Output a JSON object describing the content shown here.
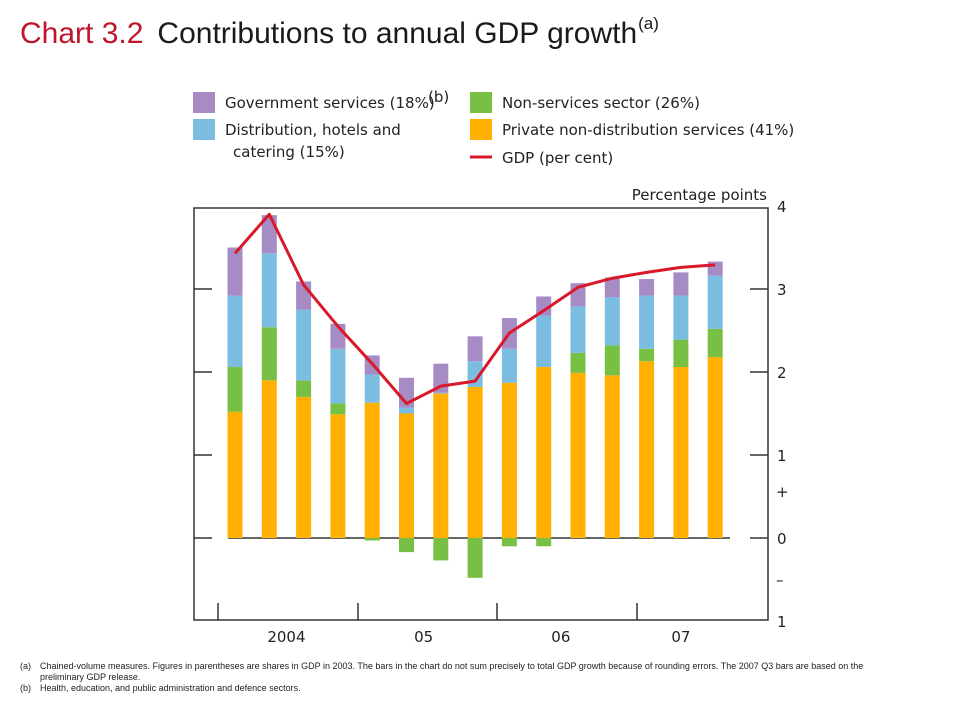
{
  "title": {
    "number": "Chart 3.2",
    "text": "Contributions to annual GDP growth",
    "note_marker": "(a)"
  },
  "footnotes": [
    {
      "marker": "(a)",
      "text": "Chained-volume measures.  Figures in parentheses are shares in GDP in 2003.  The bars in the chart do not sum precisely to total GDP growth because of rounding errors.  The 2007 Q3 bars are based on the preliminary GDP release."
    },
    {
      "marker": "(b)",
      "text": "Health, education, and public administration and defence sectors."
    }
  ],
  "chart_data": {
    "type": "bar",
    "stacked": true,
    "ylabel": "Percentage points",
    "ylim": [
      -1,
      4
    ],
    "yticks": [
      {
        "value": 4,
        "label": "4"
      },
      {
        "value": 3,
        "label": "3"
      },
      {
        "value": 2,
        "label": "2"
      },
      {
        "value": 1,
        "label": "1"
      },
      {
        "value": 0,
        "label": "0"
      },
      {
        "value": -1,
        "label": "1"
      }
    ],
    "sign_marks": {
      "plus": "+",
      "minus": "–"
    },
    "grid": false,
    "legend_position": "top",
    "legend": [
      {
        "label": "Government services (18%)",
        "note": "(b)",
        "kind": "bar",
        "color": "#a78bc5"
      },
      {
        "label": "Distribution, hotels and",
        "label2": "catering (15%)",
        "kind": "bar",
        "color": "#7bbde0"
      },
      {
        "label": "Non-services sector (26%)",
        "kind": "bar",
        "color": "#78c043"
      },
      {
        "label": "Private non-distribution services (41%)",
        "kind": "bar",
        "color": "#ffb000"
      },
      {
        "label": "GDP (per cent)",
        "kind": "line",
        "color": "#d9192a"
      }
    ],
    "categories": [
      "2004 Q1",
      "2004 Q2",
      "2004 Q3",
      "2004 Q4",
      "2005 Q1",
      "2005 Q2",
      "2005 Q3",
      "2005 Q4",
      "2006 Q1",
      "2006 Q2",
      "2006 Q3",
      "2006 Q4",
      "2007 Q1",
      "2007 Q2",
      "2007 Q3"
    ],
    "x_group_labels": [
      "2004",
      "05",
      "06",
      "07"
    ],
    "series": [
      {
        "name": "Private non-distribution services (41%)",
        "color": "#ffb000",
        "values": [
          1.52,
          1.9,
          1.7,
          1.49,
          1.63,
          1.5,
          1.74,
          1.82,
          1.87,
          2.06,
          1.99,
          1.96,
          2.13,
          2.06,
          2.18
        ]
      },
      {
        "name": "Non-services sector (26%)",
        "color": "#78c043",
        "values": [
          0.54,
          0.64,
          0.2,
          0.13,
          -0.03,
          -0.17,
          -0.27,
          -0.48,
          -0.1,
          -0.1,
          0.24,
          0.36,
          0.15,
          0.33,
          0.34
        ]
      },
      {
        "name": "Distribution, hotels and catering (15%)",
        "color": "#7bbde0",
        "values": [
          0.86,
          0.89,
          0.85,
          0.66,
          0.34,
          0.07,
          0.01,
          0.31,
          0.41,
          0.62,
          0.56,
          0.58,
          0.64,
          0.53,
          0.64
        ]
      },
      {
        "name": "Government services (18%)",
        "color": "#a78bc5",
        "values": [
          0.58,
          0.46,
          0.34,
          0.3,
          0.23,
          0.36,
          0.35,
          0.3,
          0.37,
          0.23,
          0.28,
          0.24,
          0.2,
          0.28,
          0.17
        ]
      }
    ],
    "line": {
      "name": "GDP (per cent)",
      "color": "#d9192a",
      "values": [
        3.43,
        3.9,
        3.05,
        2.55,
        2.1,
        1.62,
        1.83,
        1.89,
        2.47,
        2.74,
        3.02,
        3.13,
        3.2,
        3.26,
        3.29
      ]
    }
  }
}
